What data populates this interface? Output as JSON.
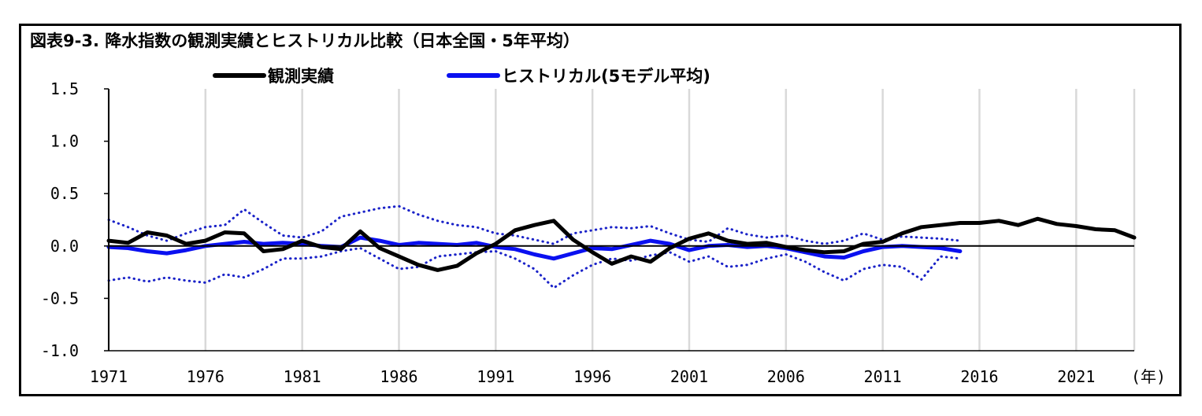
{
  "chart_data": {
    "type": "line",
    "title": "図表9-3. 降水指数の観測実績とヒストリカル比較（日本全国・5年平均）",
    "x_unit_label": "(年)",
    "ylim": [
      -1.0,
      1.5
    ],
    "y_ticks": [
      "1.5",
      "1.0",
      "0.5",
      "0.0",
      "-0.5",
      "-1.0"
    ],
    "x_ticks": [
      "1971",
      "1976",
      "1981",
      "1986",
      "1991",
      "1996",
      "2001",
      "2006",
      "2011",
      "2016",
      "2021"
    ],
    "grid": "vertical",
    "legend": "top",
    "series": [
      {
        "name": "観測実績",
        "color": "#000000",
        "style": "solid",
        "x": [
          1971,
          1972,
          1973,
          1974,
          1975,
          1976,
          1977,
          1978,
          1979,
          1980,
          1981,
          1982,
          1983,
          1984,
          1985,
          1986,
          1987,
          1988,
          1989,
          1990,
          1991,
          1992,
          1993,
          1994,
          1995,
          1996,
          1997,
          1998,
          1999,
          2000,
          2001,
          2002,
          2003,
          2004,
          2005,
          2006,
          2007,
          2008,
          2009,
          2010,
          2011,
          2012,
          2013,
          2014,
          2015,
          2016,
          2017,
          2018,
          2019,
          2020,
          2021,
          2022,
          2023,
          2024
        ],
        "values": [
          0.05,
          0.03,
          0.13,
          0.1,
          0.02,
          0.05,
          0.13,
          0.12,
          -0.05,
          -0.03,
          0.05,
          -0.01,
          -0.03,
          0.14,
          -0.02,
          -0.1,
          -0.18,
          -0.23,
          -0.19,
          -0.07,
          0.02,
          0.15,
          0.2,
          0.24,
          0.06,
          -0.06,
          -0.17,
          -0.1,
          -0.15,
          -0.02,
          0.07,
          0.12,
          0.05,
          0.02,
          0.03,
          -0.01,
          -0.04,
          -0.06,
          -0.05,
          0.02,
          0.04,
          0.12,
          0.18,
          0.2,
          0.22,
          0.22,
          0.24,
          0.2,
          0.26,
          0.21,
          0.19,
          0.16,
          0.15,
          0.08
        ]
      },
      {
        "name": "ヒストリカル(5モデル平均)",
        "color": "#0a10f0",
        "style": "solid",
        "x": [
          1971,
          1972,
          1973,
          1974,
          1975,
          1976,
          1977,
          1978,
          1979,
          1980,
          1981,
          1982,
          1983,
          1984,
          1985,
          1986,
          1987,
          1988,
          1989,
          1990,
          1991,
          1992,
          1993,
          1994,
          1995,
          1996,
          1997,
          1998,
          1999,
          2000,
          2001,
          2002,
          2003,
          2004,
          2005,
          2006,
          2007,
          2008,
          2009,
          2010,
          2011,
          2012,
          2013,
          2014,
          2015
        ],
        "values": [
          -0.01,
          -0.02,
          -0.05,
          -0.07,
          -0.04,
          0.0,
          0.02,
          0.04,
          0.02,
          0.03,
          0.02,
          0.0,
          -0.01,
          0.08,
          0.05,
          0.01,
          0.03,
          0.02,
          0.01,
          0.03,
          -0.01,
          -0.03,
          -0.08,
          -0.12,
          -0.07,
          -0.02,
          -0.03,
          0.01,
          0.05,
          0.02,
          -0.04,
          0.0,
          0.01,
          -0.01,
          0.0,
          -0.02,
          -0.06,
          -0.1,
          -0.11,
          -0.05,
          -0.01,
          0.0,
          -0.01,
          -0.02,
          -0.05
        ]
      },
      {
        "name": "",
        "color": "#1a22c8",
        "style": "dotted",
        "x": [
          1971,
          1972,
          1973,
          1974,
          1975,
          1976,
          1977,
          1978,
          1979,
          1980,
          1981,
          1982,
          1983,
          1984,
          1985,
          1986,
          1987,
          1988,
          1989,
          1990,
          1991,
          1992,
          1993,
          1994,
          1995,
          1996,
          1997,
          1998,
          1999,
          2000,
          2001,
          2002,
          2003,
          2004,
          2005,
          2006,
          2007,
          2008,
          2009,
          2010,
          2011,
          2012,
          2013,
          2014,
          2015
        ],
        "values": [
          0.25,
          0.18,
          0.1,
          0.05,
          0.12,
          0.18,
          0.2,
          0.35,
          0.22,
          0.1,
          0.08,
          0.14,
          0.28,
          0.32,
          0.36,
          0.38,
          0.3,
          0.24,
          0.2,
          0.18,
          0.12,
          0.1,
          0.06,
          0.02,
          0.12,
          0.15,
          0.18,
          0.17,
          0.19,
          0.12,
          0.06,
          0.04,
          0.17,
          0.11,
          0.08,
          0.1,
          0.05,
          0.02,
          0.05,
          0.12,
          0.06,
          0.09,
          0.08,
          0.07,
          0.05
        ]
      },
      {
        "name": "",
        "color": "#1a22c8",
        "style": "dotted",
        "x": [
          1971,
          1972,
          1973,
          1974,
          1975,
          1976,
          1977,
          1978,
          1979,
          1980,
          1981,
          1982,
          1983,
          1984,
          1985,
          1986,
          1987,
          1988,
          1989,
          1990,
          1991,
          1992,
          1993,
          1994,
          1995,
          1996,
          1997,
          1998,
          1999,
          2000,
          2001,
          2002,
          2003,
          2004,
          2005,
          2006,
          2007,
          2008,
          2009,
          2010,
          2011,
          2012,
          2013,
          2014,
          2015
        ],
        "values": [
          -0.33,
          -0.3,
          -0.34,
          -0.3,
          -0.33,
          -0.35,
          -0.27,
          -0.3,
          -0.22,
          -0.12,
          -0.12,
          -0.1,
          -0.05,
          -0.02,
          -0.12,
          -0.22,
          -0.2,
          -0.1,
          -0.08,
          -0.06,
          -0.05,
          -0.12,
          -0.22,
          -0.4,
          -0.28,
          -0.18,
          -0.12,
          -0.14,
          -0.09,
          -0.06,
          -0.15,
          -0.1,
          -0.2,
          -0.18,
          -0.12,
          -0.08,
          -0.15,
          -0.25,
          -0.33,
          -0.22,
          -0.18,
          -0.2,
          -0.32,
          -0.1,
          -0.12
        ]
      }
    ]
  }
}
